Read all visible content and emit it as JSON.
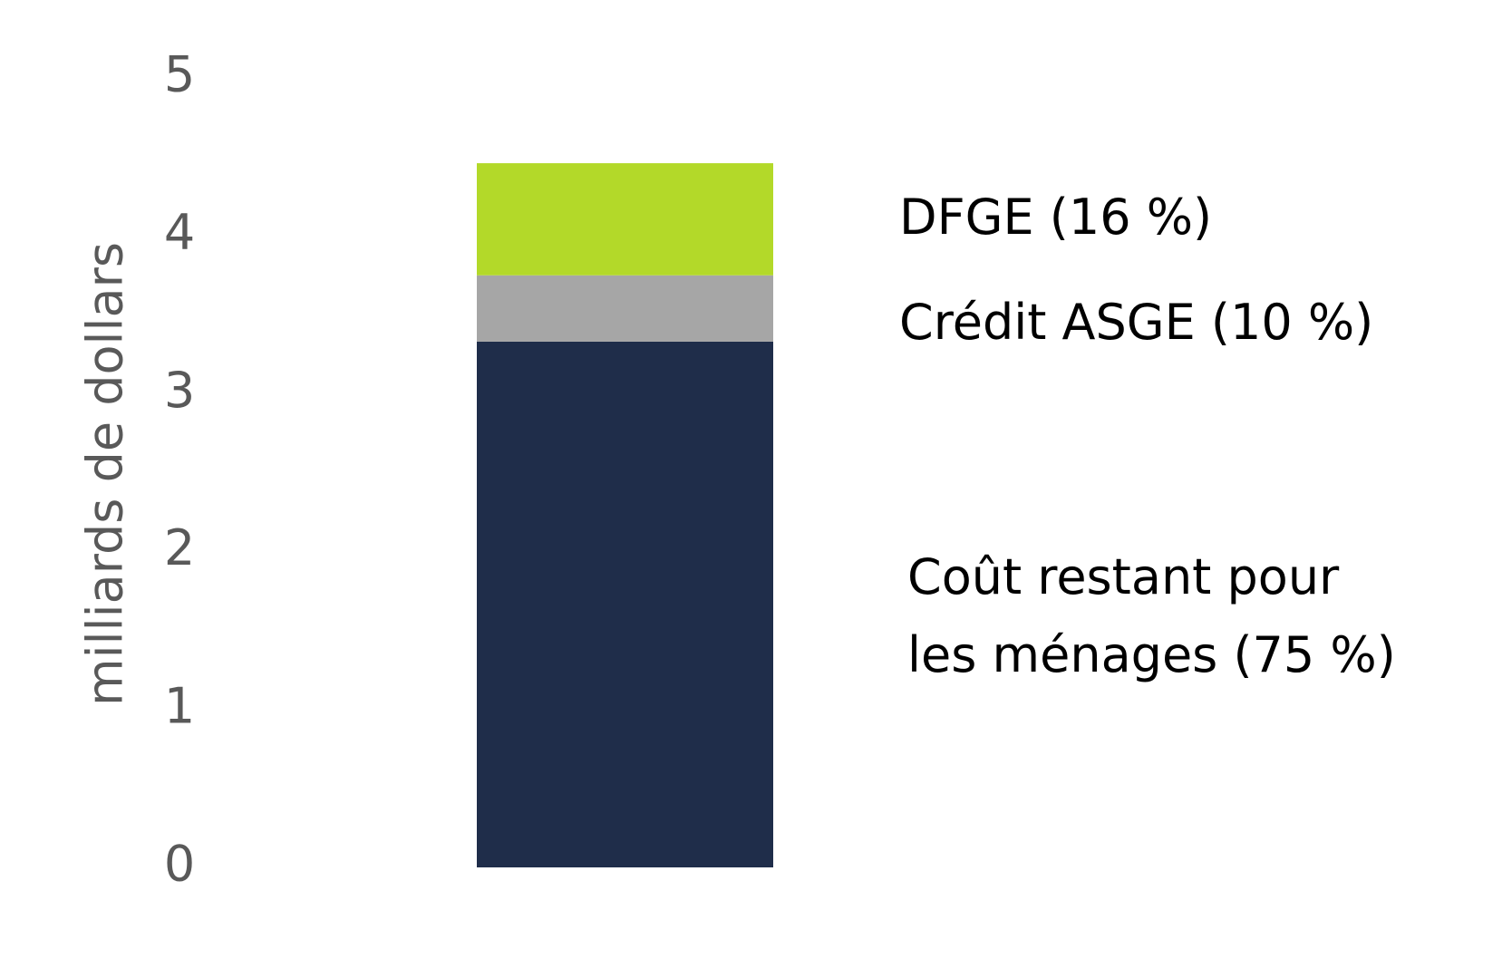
{
  "chart_data": {
    "type": "stacked_bar",
    "y_label": "milliards de dollars",
    "categories": [
      null
    ],
    "series": [
      {
        "name": "Coût restant pour les ménages (75 %)",
        "color": "#1f2d4a",
        "values": [
          3.33
        ]
      },
      {
        "name": "Crédit ASGE (10 %)",
        "color": "#a6a6a6",
        "values": [
          0.42
        ]
      },
      {
        "name": "DFGE (16 %)",
        "color": "#b3d929",
        "values": [
          0.71
        ]
      }
    ],
    "ylim": [
      0,
      5
    ],
    "yticks": [
      0,
      1,
      2,
      3,
      4,
      5
    ],
    "grid": false
  }
}
